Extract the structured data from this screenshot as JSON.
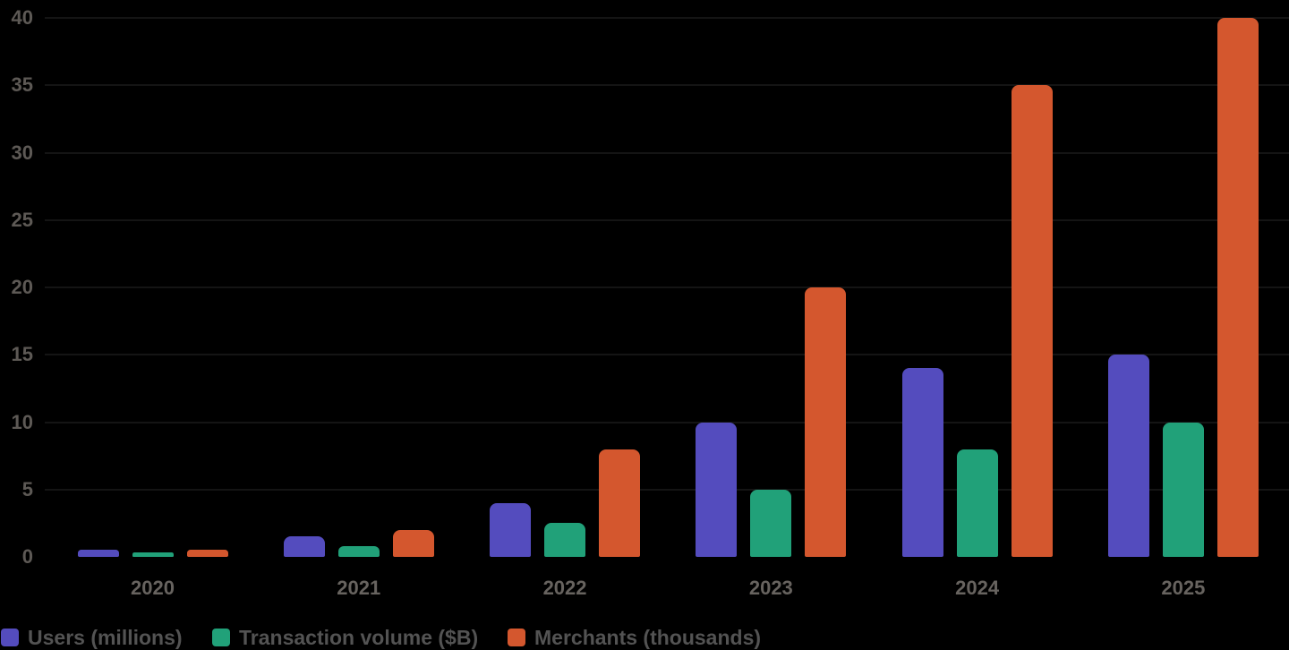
{
  "chart_data": {
    "type": "bar",
    "categories": [
      "2020",
      "2021",
      "2022",
      "2023",
      "2024",
      "2025"
    ],
    "series": [
      {
        "name": "Users (millions)",
        "color": "#544CBE",
        "values": [
          0.5,
          1.5,
          4,
          10,
          14,
          15
        ]
      },
      {
        "name": "Transaction volume ($B)",
        "color": "#21A179",
        "values": [
          0.3,
          0.8,
          2.5,
          5,
          8,
          10
        ]
      },
      {
        "name": "Merchants (thousands)",
        "color": "#D4572E",
        "values": [
          0.5,
          2,
          8,
          20,
          35,
          40
        ]
      }
    ],
    "y_ticks": [
      "0",
      "5",
      "10",
      "15",
      "20",
      "25",
      "30",
      "35",
      "40"
    ],
    "ylim": [
      0,
      40
    ],
    "xlabel": "",
    "ylabel": "",
    "title": "",
    "grid": "horizontal-faint",
    "legend_position": "bottom-left",
    "background_color": "#000000",
    "axis_label_color": "#5d5955",
    "legend_text_color": "#535353"
  }
}
